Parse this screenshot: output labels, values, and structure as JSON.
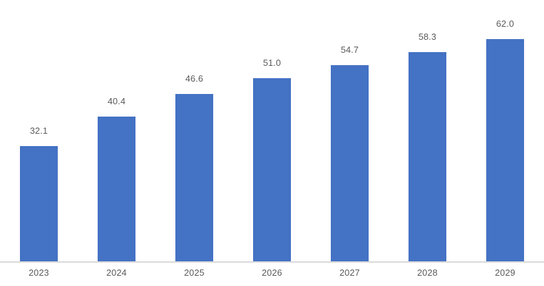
{
  "chart_data": {
    "type": "bar",
    "categories": [
      "2023",
      "2024",
      "2025",
      "2026",
      "2027",
      "2028",
      "2029"
    ],
    "values": [
      32.1,
      40.4,
      46.6,
      51.0,
      54.7,
      58.3,
      62.0
    ],
    "data_labels": [
      "32.1",
      "40.4",
      "46.6",
      "51.0",
      "54.7",
      "58.3",
      "62.0"
    ],
    "title": "",
    "xlabel": "",
    "ylabel": "",
    "ylim": [
      0,
      65
    ],
    "grid": false,
    "legend": false,
    "data_labels_visible": true,
    "colors": {
      "bar": "#4472C4",
      "data_label": "#595959",
      "axis_tick_label": "#595959",
      "axis_line": "#D9D9D9",
      "background": "#FFFFFF"
    }
  }
}
